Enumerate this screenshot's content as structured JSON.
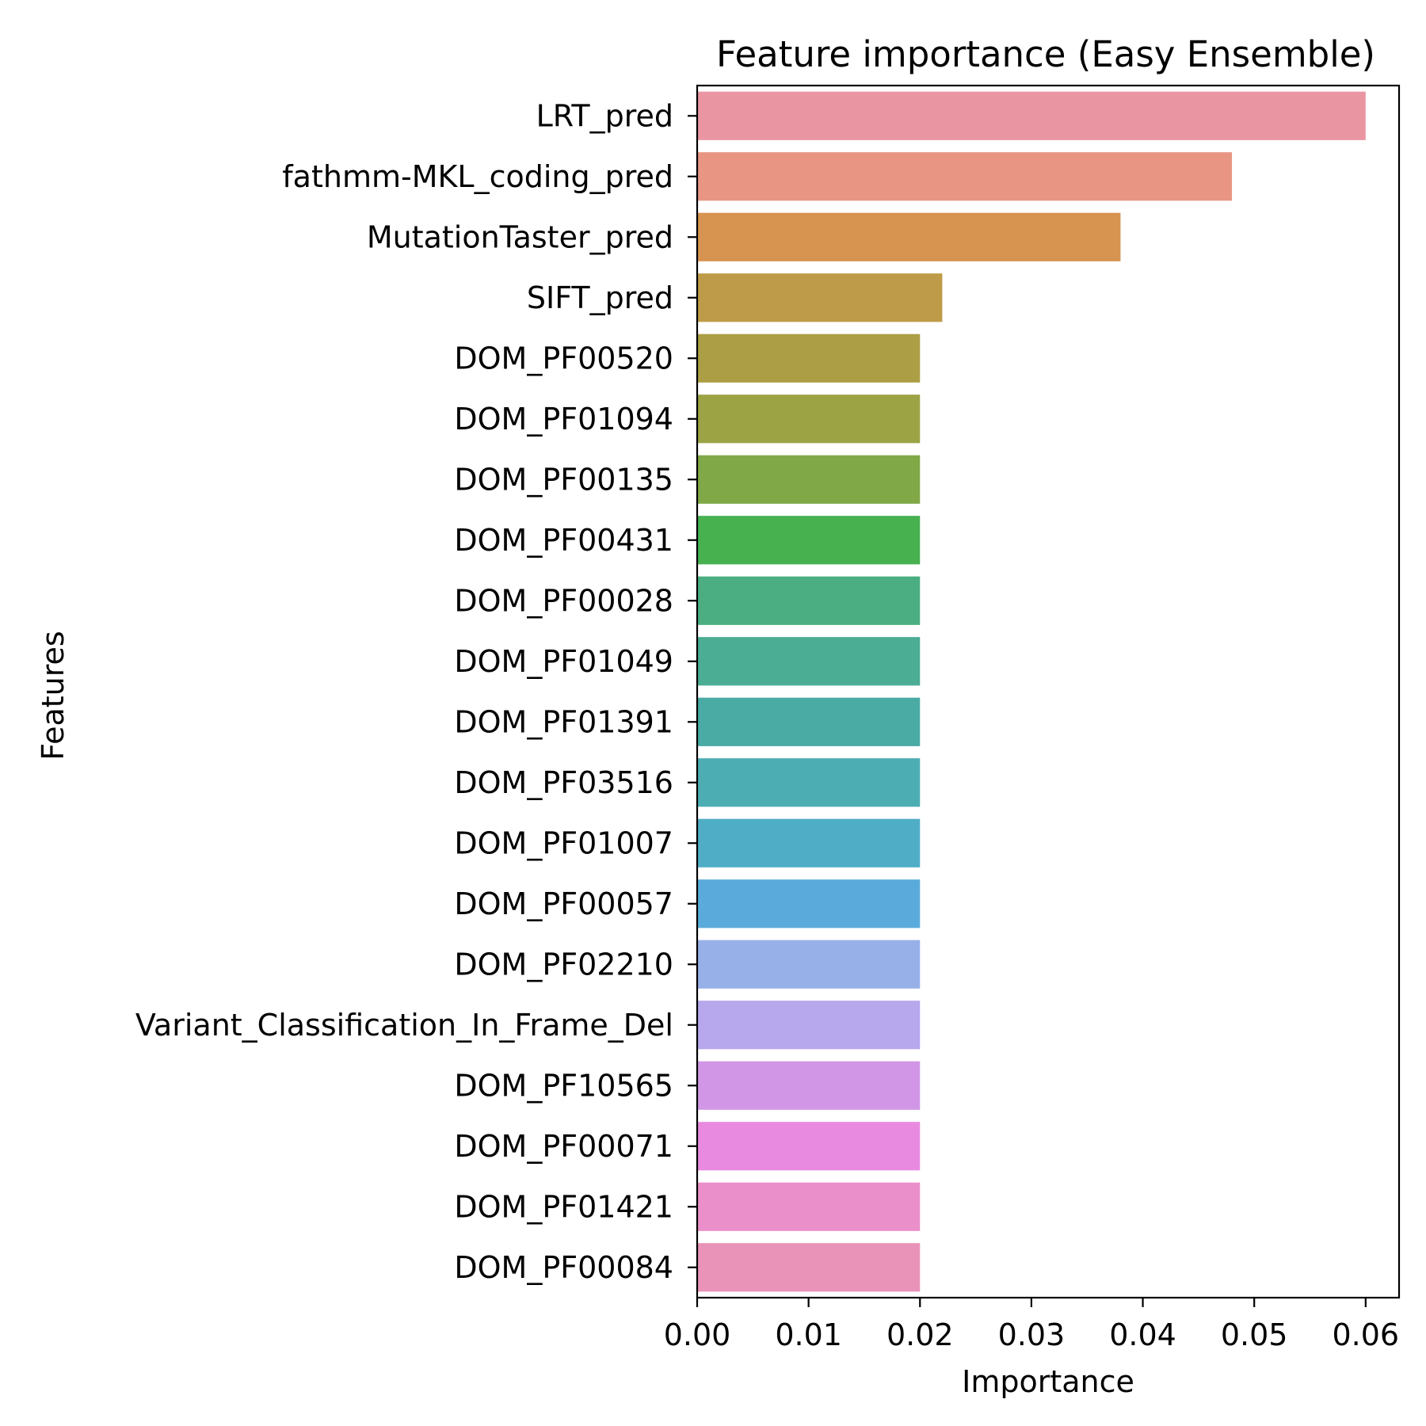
{
  "chart_data": {
    "type": "bar",
    "orientation": "horizontal",
    "title": "Feature importance (Easy Ensemble)",
    "xlabel": "Importance",
    "ylabel": "Features",
    "xlim": [
      0,
      0.063
    ],
    "xticks": [
      0.0,
      0.01,
      0.02,
      0.03,
      0.04,
      0.05,
      0.06
    ],
    "xtick_labels": [
      "0.00",
      "0.01",
      "0.02",
      "0.03",
      "0.04",
      "0.05",
      "0.06"
    ],
    "grid": false,
    "legend": "none",
    "categories": [
      "LRT_pred",
      "fathmm-MKL_coding_pred",
      "MutationTaster_pred",
      "SIFT_pred",
      "DOM_PF00520",
      "DOM_PF01094",
      "DOM_PF00135",
      "DOM_PF00431",
      "DOM_PF00028",
      "DOM_PF01049",
      "DOM_PF01391",
      "DOM_PF03516",
      "DOM_PF01007",
      "DOM_PF00057",
      "DOM_PF02210",
      "Variant_Classification_In_Frame_Del",
      "DOM_PF10565",
      "DOM_PF00071",
      "DOM_PF01421",
      "DOM_PF00084"
    ],
    "values": [
      0.06,
      0.048,
      0.038,
      0.022,
      0.02,
      0.02,
      0.02,
      0.02,
      0.02,
      0.02,
      0.02,
      0.02,
      0.02,
      0.02,
      0.02,
      0.02,
      0.02,
      0.02,
      0.02,
      0.02
    ],
    "colors": [
      "#ea96a2",
      "#e89683",
      "#d79350",
      "#be9b48",
      "#ab9e45",
      "#9ba345",
      "#80a846",
      "#47b150",
      "#4aae82",
      "#4aad94",
      "#4aaaa4",
      "#4caeb3",
      "#4faec6",
      "#5aabdb",
      "#97b0e8",
      "#b7a7ec",
      "#d196e6",
      "#e88ae0",
      "#ea8fc9",
      "#e993b8"
    ]
  }
}
